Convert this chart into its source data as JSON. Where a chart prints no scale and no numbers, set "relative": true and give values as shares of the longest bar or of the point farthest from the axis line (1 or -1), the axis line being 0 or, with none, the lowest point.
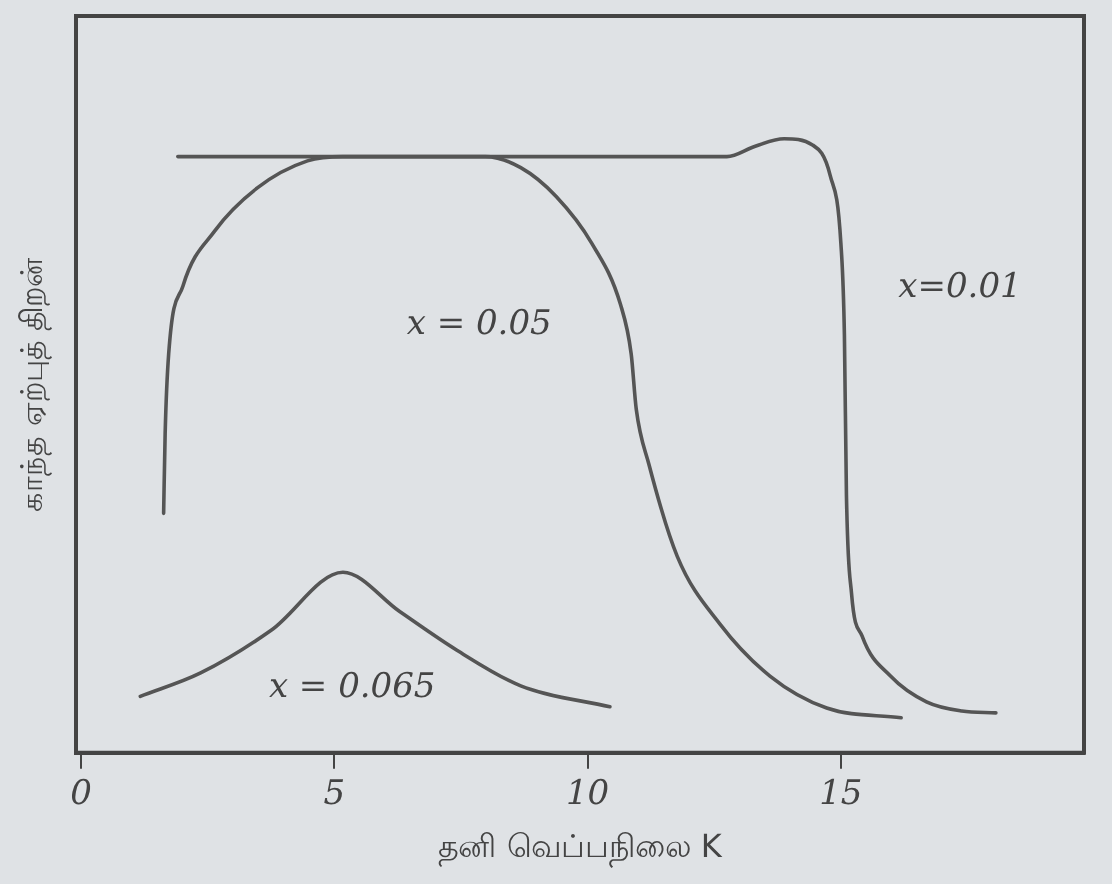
{
  "chart_data": {
    "type": "line",
    "relative": true,
    "xlabel": "தனி வெப்பநிலை K",
    "ylabel": "காந்த ஏற்புத் திறன்",
    "xlim": [
      -0.1,
      19.8
    ],
    "xticks": [
      0,
      5,
      10,
      15
    ],
    "grid": false,
    "legend": false,
    "marker": "none",
    "line_style": "solid",
    "series": [
      {
        "name": "x=0.01",
        "color": "#555555",
        "x": [
          1.91,
          12.75,
          13.31,
          13.88,
          14.44,
          14.79,
          15.0,
          15.07,
          15.11,
          15.21,
          15.42,
          15.98,
          16.69,
          17.39,
          18.06
        ],
        "values": [
          0.971,
          0.971,
          0.988,
          1.0,
          0.99,
          0.94,
          0.83,
          0.68,
          0.42,
          0.26,
          0.19,
          0.125,
          0.083,
          0.068,
          0.065
        ]
      },
      {
        "name": "x = 0.05",
        "color": "#555555",
        "x": [
          1.63,
          1.66,
          1.73,
          2.01,
          2.64,
          3.48,
          4.47,
          5.17,
          7.98,
          8.68,
          9.38,
          10.08,
          10.65,
          10.86,
          10.96,
          11.21,
          11.77,
          12.61,
          13.6,
          14.72,
          16.19
        ],
        "values": [
          0.39,
          0.52,
          0.65,
          0.76,
          0.85,
          0.92,
          0.964,
          0.971,
          0.971,
          0.953,
          0.906,
          0.83,
          0.73,
          0.65,
          0.56,
          0.47,
          0.32,
          0.21,
          0.125,
          0.073,
          0.057
        ]
      },
      {
        "name": "x = 0.065",
        "color": "#555555",
        "x": [
          1.17,
          2.36,
          3.76,
          5.17,
          6.29,
          7.42,
          8.68,
          10.44
        ],
        "values": [
          0.092,
          0.13,
          0.2,
          0.294,
          0.23,
          0.167,
          0.109,
          0.075
        ]
      }
    ]
  }
}
